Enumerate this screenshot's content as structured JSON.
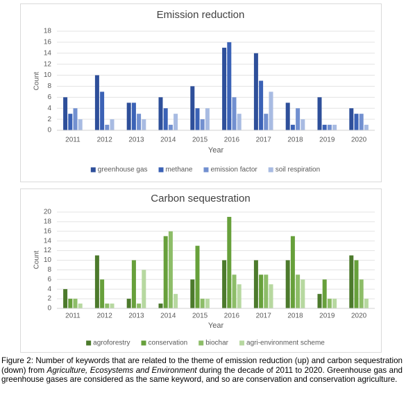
{
  "chart_data": [
    {
      "type": "bar",
      "title": "Emission reduction",
      "x_label": "Year",
      "y_label": "Count",
      "categories": [
        "2011",
        "2012",
        "2013",
        "2014",
        "2015",
        "2016",
        "2017",
        "2018",
        "2019",
        "2020"
      ],
      "series": [
        {
          "name": "greenhouse gas",
          "color": "#2e4f9a",
          "values": [
            6,
            10,
            5,
            6,
            8,
            15,
            14,
            5,
            6,
            4
          ]
        },
        {
          "name": "methane",
          "color": "#3b62b6",
          "values": [
            3,
            7,
            5,
            4,
            4,
            16,
            9,
            1,
            1,
            3
          ]
        },
        {
          "name": "emission factor",
          "color": "#7290d0",
          "values": [
            4,
            1,
            3,
            1,
            2,
            6,
            3,
            4,
            1,
            3
          ]
        },
        {
          "name": "soil respiration",
          "color": "#a8bbe2",
          "values": [
            2,
            2,
            2,
            3,
            4,
            3,
            7,
            2,
            1,
            1
          ]
        }
      ],
      "ylim": [
        0,
        18
      ],
      "yticks": [
        0,
        2,
        4,
        6,
        8,
        10,
        12,
        14,
        16,
        18
      ],
      "grid": true,
      "legend": "bottom"
    },
    {
      "type": "bar",
      "title": "Carbon sequestration",
      "x_label": "Year",
      "y_label": "Count",
      "categories": [
        "2011",
        "2012",
        "2013",
        "2014",
        "2015",
        "2016",
        "2017",
        "2018",
        "2019",
        "2020"
      ],
      "series": [
        {
          "name": "agroforestry",
          "color": "#4c7a2c",
          "values": [
            4,
            11,
            2,
            1,
            6,
            10,
            10,
            10,
            3,
            11
          ]
        },
        {
          "name": "conservation",
          "color": "#67a03b",
          "values": [
            2,
            6,
            10,
            15,
            13,
            19,
            7,
            15,
            6,
            10
          ]
        },
        {
          "name": "biochar",
          "color": "#8dbd68",
          "values": [
            2,
            1,
            1,
            16,
            2,
            7,
            7,
            7,
            2,
            6
          ]
        },
        {
          "name": "agri-environment scheme",
          "color": "#b7d8a0",
          "values": [
            1,
            1,
            8,
            3,
            2,
            5,
            5,
            6,
            2,
            2
          ]
        }
      ],
      "ylim": [
        0,
        20
      ],
      "yticks": [
        0,
        2,
        4,
        6,
        8,
        10,
        12,
        14,
        16,
        18,
        20
      ],
      "grid": true,
      "legend": "bottom"
    }
  ],
  "caption": [
    "Figure 2: Number of keywords that are related to the theme of emission reduction (up) and carbon sequestration (down) from ",
    "Agriculture, Ecosystems and Environment",
    " during the decade of 2011 to 2020. Greenhouse gas and greenhouse gases are considered as the same keyword, and so are conservation and conservation agriculture."
  ]
}
